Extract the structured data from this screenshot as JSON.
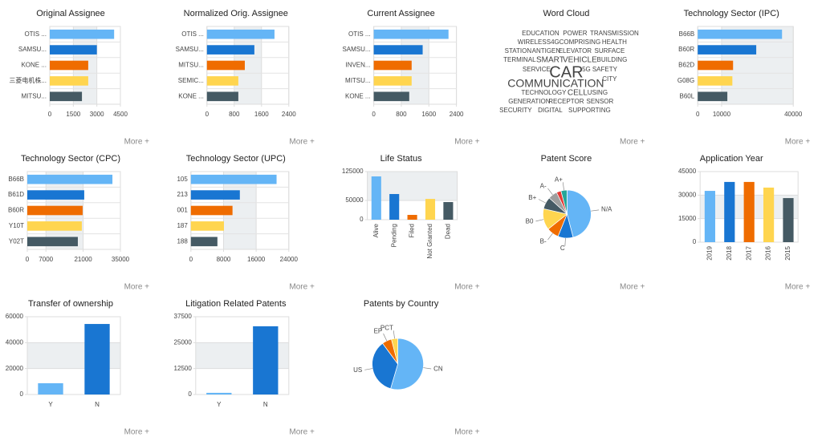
{
  "more_button": "More +",
  "chart_data": [
    {
      "type": "bar",
      "orientation": "horizontal",
      "title": "Original Assignee",
      "categories": [
        "OTIS ...",
        "SAMSU...",
        "KONE ...",
        "三菱电机株...",
        "MITSU..."
      ],
      "values": [
        4100,
        3000,
        2450,
        2450,
        2050
      ],
      "colors": [
        "#64b5f6",
        "#1976d2",
        "#ef6c00",
        "#ffd54f",
        "#455a64"
      ],
      "xlim": [
        0,
        4500
      ],
      "xticks": [
        0,
        1500,
        3000,
        4500
      ]
    },
    {
      "type": "bar",
      "orientation": "horizontal",
      "title": "Normalized Orig. Assignee",
      "categories": [
        "OTIS ...",
        "SAMSU...",
        "MITSU...",
        "SEMIC...",
        "KONE ..."
      ],
      "values": [
        1980,
        1390,
        1110,
        920,
        920
      ],
      "colors": [
        "#64b5f6",
        "#1976d2",
        "#ef6c00",
        "#ffd54f",
        "#455a64"
      ],
      "xlim": [
        0,
        2400
      ],
      "xticks": [
        0,
        800,
        1600,
        2400
      ]
    },
    {
      "type": "bar",
      "orientation": "horizontal",
      "title": "Current Assignee",
      "categories": [
        "OTIS ...",
        "SAMSU...",
        "INVEN...",
        "MITSU...",
        "KONE ..."
      ],
      "values": [
        2170,
        1420,
        1100,
        1100,
        1030
      ],
      "colors": [
        "#64b5f6",
        "#1976d2",
        "#ef6c00",
        "#ffd54f",
        "#455a64"
      ],
      "xlim": [
        0,
        2400
      ],
      "xticks": [
        0,
        800,
        1600,
        2400
      ]
    },
    {
      "type": "wordcloud",
      "title": "Word Cloud",
      "words": [
        {
          "text": "EDUCATION",
          "color": "#26a69a"
        },
        {
          "text": "POWER",
          "color": "#9c27b0"
        },
        {
          "text": "TRANSMISSION",
          "color": "#9e9e9e"
        },
        {
          "text": "WIRELESS",
          "color": "#9e9e9e"
        },
        {
          "text": "4G",
          "color": "#1e88e5"
        },
        {
          "text": "COMPRISING",
          "color": "#9c27b0"
        },
        {
          "text": "HEALTH",
          "color": "#26a69a"
        },
        {
          "text": "STATION",
          "color": "#ef6c00"
        },
        {
          "text": "ANTIGEN",
          "color": "#ef6c00"
        },
        {
          "text": "ELEVATOR",
          "color": "#9e9e9e"
        },
        {
          "text": "SURFACE",
          "color": "#43a047"
        },
        {
          "text": "TERMINAL",
          "color": "#f9a825"
        },
        {
          "text": "SMART",
          "color": "#43a047"
        },
        {
          "text": "VEHICLE",
          "color": "#26a69a"
        },
        {
          "text": "BUILDING",
          "color": "#42a5f5"
        },
        {
          "text": "SERVICE",
          "color": "#9e9e9e"
        },
        {
          "text": "CAR",
          "color": "#9c27b0"
        },
        {
          "text": "5G",
          "color": "#9e9e9e"
        },
        {
          "text": "SAFETY",
          "color": "#9c27b0"
        },
        {
          "text": "COMMUNICATION",
          "color": "#9e9e9e"
        },
        {
          "text": "CITY",
          "color": "#f9a825"
        },
        {
          "text": "TECHNOLOGY",
          "color": "#ef6c00"
        },
        {
          "text": "CELL",
          "color": "#c0ca33"
        },
        {
          "text": "USING",
          "color": "#9c27b0"
        },
        {
          "text": "GENERATION",
          "color": "#ef6c00"
        },
        {
          "text": "RECEPTOR",
          "color": "#ef6c00"
        },
        {
          "text": "SENSOR",
          "color": "#f9a825"
        },
        {
          "text": "SECURITY",
          "color": "#f9a825"
        },
        {
          "text": "DIGITAL",
          "color": "#9c27b0"
        },
        {
          "text": "SUPPORTING",
          "color": "#42a5f5"
        }
      ]
    },
    {
      "type": "bar",
      "orientation": "horizontal",
      "title": "Technology Sector (IPC)",
      "categories": [
        "B66B",
        "B60R",
        "B62D",
        "G08G",
        "B60L"
      ],
      "values": [
        35300,
        24500,
        14800,
        14500,
        12400
      ],
      "colors": [
        "#64b5f6",
        "#1976d2",
        "#ef6c00",
        "#ffd54f",
        "#455a64"
      ],
      "xlim": [
        0,
        40000
      ],
      "xticks": [
        0,
        10000,
        40000
      ]
    },
    {
      "type": "bar",
      "orientation": "horizontal",
      "title": "Technology Sector (CPC)",
      "categories": [
        "B66B",
        "B61D",
        "B60R",
        "Y10T",
        "Y02T"
      ],
      "values": [
        32000,
        21400,
        20800,
        20500,
        19000
      ],
      "colors": [
        "#64b5f6",
        "#1976d2",
        "#ef6c00",
        "#ffd54f",
        "#455a64"
      ],
      "xlim": [
        0,
        35000
      ],
      "xticks": [
        0,
        7000,
        21000,
        35000
      ]
    },
    {
      "type": "bar",
      "orientation": "horizontal",
      "title": "Technology Sector (UPC)",
      "categories": [
        "105",
        "213",
        "001",
        "187",
        "188"
      ],
      "values": [
        21000,
        12000,
        10200,
        8100,
        6500
      ],
      "colors": [
        "#64b5f6",
        "#1976d2",
        "#ef6c00",
        "#ffd54f",
        "#455a64"
      ],
      "xlim": [
        0,
        24000
      ],
      "xticks": [
        0,
        8000,
        16000,
        24000
      ]
    },
    {
      "type": "bar",
      "orientation": "vertical",
      "title": "Life Status",
      "categories": [
        "Alive",
        "Pending",
        "Filed",
        "Not Granted",
        "Dead"
      ],
      "values": [
        112500,
        66700,
        12500,
        54000,
        45800
      ],
      "colors": [
        "#64b5f6",
        "#1976d2",
        "#ef6c00",
        "#ffd54f",
        "#455a64"
      ],
      "ylim": [
        0,
        125000
      ],
      "yticks": [
        0,
        50000,
        125000
      ]
    },
    {
      "type": "pie",
      "title": "Patent Score",
      "categories": [
        "N/A",
        "C",
        "B-",
        "B0",
        "B+",
        "A-",
        null,
        "A+"
      ],
      "values": [
        45,
        10,
        8,
        14,
        8,
        6,
        3,
        4
      ],
      "colors": [
        "#64b5f6",
        "#1976d2",
        "#ef6c00",
        "#ffd54f",
        "#455a64",
        "#9e9e9e",
        "#e53935",
        "#26a69a"
      ]
    },
    {
      "type": "bar",
      "orientation": "vertical",
      "title": "Application Year",
      "categories": [
        "2019",
        "2018",
        "2017",
        "2016",
        "2015"
      ],
      "values": [
        32700,
        38400,
        38400,
        34800,
        28100
      ],
      "colors": [
        "#64b5f6",
        "#1976d2",
        "#ef6c00",
        "#ffd54f",
        "#455a64"
      ],
      "ylim": [
        0,
        45000
      ],
      "yticks": [
        0,
        15000,
        30000,
        45000
      ]
    },
    {
      "type": "bar",
      "orientation": "vertical",
      "title": "Transfer of ownership",
      "categories": [
        "Y",
        "N"
      ],
      "values": [
        8700,
        54400
      ],
      "colors": [
        "#64b5f6",
        "#1976d2"
      ],
      "ylim": [
        0,
        60000
      ],
      "yticks": [
        0,
        20000,
        40000,
        60000
      ]
    },
    {
      "type": "bar",
      "orientation": "vertical",
      "title": "Litigation Related Patents",
      "categories": [
        "Y",
        "N"
      ],
      "values": [
        800,
        32900
      ],
      "colors": [
        "#64b5f6",
        "#1976d2"
      ],
      "ylim": [
        0,
        37500
      ],
      "yticks": [
        0,
        12500,
        25000,
        37500
      ]
    },
    {
      "type": "pie",
      "title": "Patents by Country",
      "categories": [
        "CN",
        "US",
        "EP",
        "PCT"
      ],
      "values": [
        54,
        35,
        6,
        4
      ],
      "colors": [
        "#64b5f6",
        "#1976d2",
        "#ef6c00",
        "#ffd54f"
      ]
    }
  ]
}
